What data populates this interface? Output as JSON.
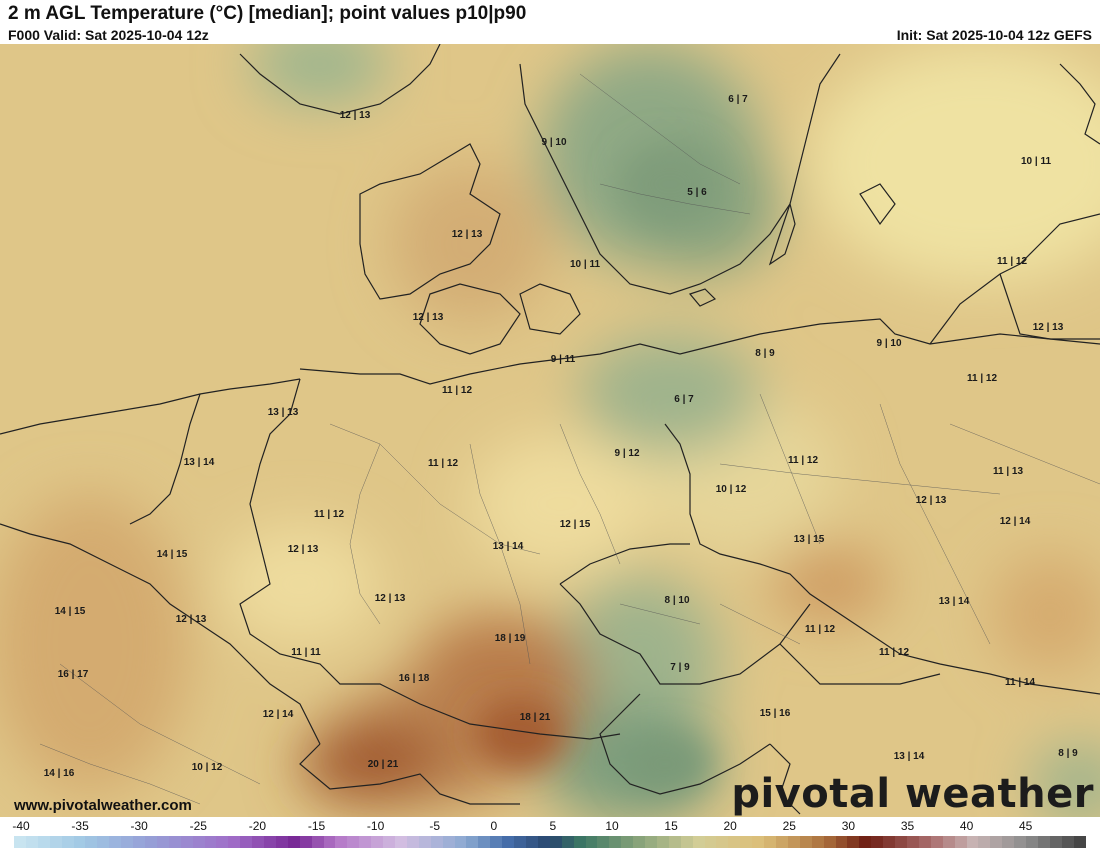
{
  "header": {
    "title": "2 m AGL Temperature (°C) [median]; point values p10|p90",
    "valid": "F000 Valid: Sat 2025-10-04 12z",
    "init": "Init: Sat 2025-10-04 12z GEFS"
  },
  "footer": {
    "url": "www.pivotalweather.com",
    "logo": "pivotal weather"
  },
  "colors": {
    "cold_green": "#7e9f7e",
    "mild_yellow": "#eadc9c",
    "warm_tan": "#d9b273",
    "hot_brown": "#a0582e",
    "border": "#222222"
  },
  "colorbar": {
    "ticks": [
      "-40",
      "-35",
      "-30",
      "-25",
      "-20",
      "-15",
      "-10",
      "-5",
      "0",
      "5",
      "10",
      "15",
      "20",
      "25",
      "30",
      "35",
      "40",
      "45"
    ]
  },
  "point_values": [
    {
      "text": "12 | 13"
    },
    {
      "text": "6 | 7"
    },
    {
      "text": "9 | 10"
    },
    {
      "text": "5 | 6"
    },
    {
      "text": "10 | 11"
    },
    {
      "text": "12 | 13"
    },
    {
      "text": "10 | 11"
    },
    {
      "text": "11 | 12"
    },
    {
      "text": "12 | 13"
    },
    {
      "text": "12 | 13"
    },
    {
      "text": "9 | 11"
    },
    {
      "text": "8 | 9"
    },
    {
      "text": "9 | 10"
    },
    {
      "text": "11 | 12"
    },
    {
      "text": "11 | 12"
    },
    {
      "text": "13 | 13"
    },
    {
      "text": "6 | 7"
    },
    {
      "text": "13 | 14"
    },
    {
      "text": "11 | 12"
    },
    {
      "text": "9 | 12"
    },
    {
      "text": "11 | 12"
    },
    {
      "text": "11 | 13"
    },
    {
      "text": "10 | 12"
    },
    {
      "text": "12 | 13"
    },
    {
      "text": "11 | 12"
    },
    {
      "text": "12 | 15"
    },
    {
      "text": "12 | 14"
    },
    {
      "text": "12 | 13"
    },
    {
      "text": "13 | 14"
    },
    {
      "text": "13 | 15"
    },
    {
      "text": "14 | 15"
    },
    {
      "text": "14 | 15"
    },
    {
      "text": "12 | 13"
    },
    {
      "text": "8 | 10"
    },
    {
      "text": "13 | 14"
    },
    {
      "text": "12 | 13"
    },
    {
      "text": "18 | 19"
    },
    {
      "text": "11 | 12"
    },
    {
      "text": "11 | 11"
    },
    {
      "text": "11 | 12"
    },
    {
      "text": "16 | 17"
    },
    {
      "text": "16 | 18"
    },
    {
      "text": "7 | 9"
    },
    {
      "text": "11 | 14"
    },
    {
      "text": "12 | 14"
    },
    {
      "text": "18 | 21"
    },
    {
      "text": "15 | 16"
    },
    {
      "text": "20 | 21"
    },
    {
      "text": "13 | 14"
    },
    {
      "text": "8 | 9"
    },
    {
      "text": "14 | 16"
    },
    {
      "text": "10 | 12"
    }
  ]
}
